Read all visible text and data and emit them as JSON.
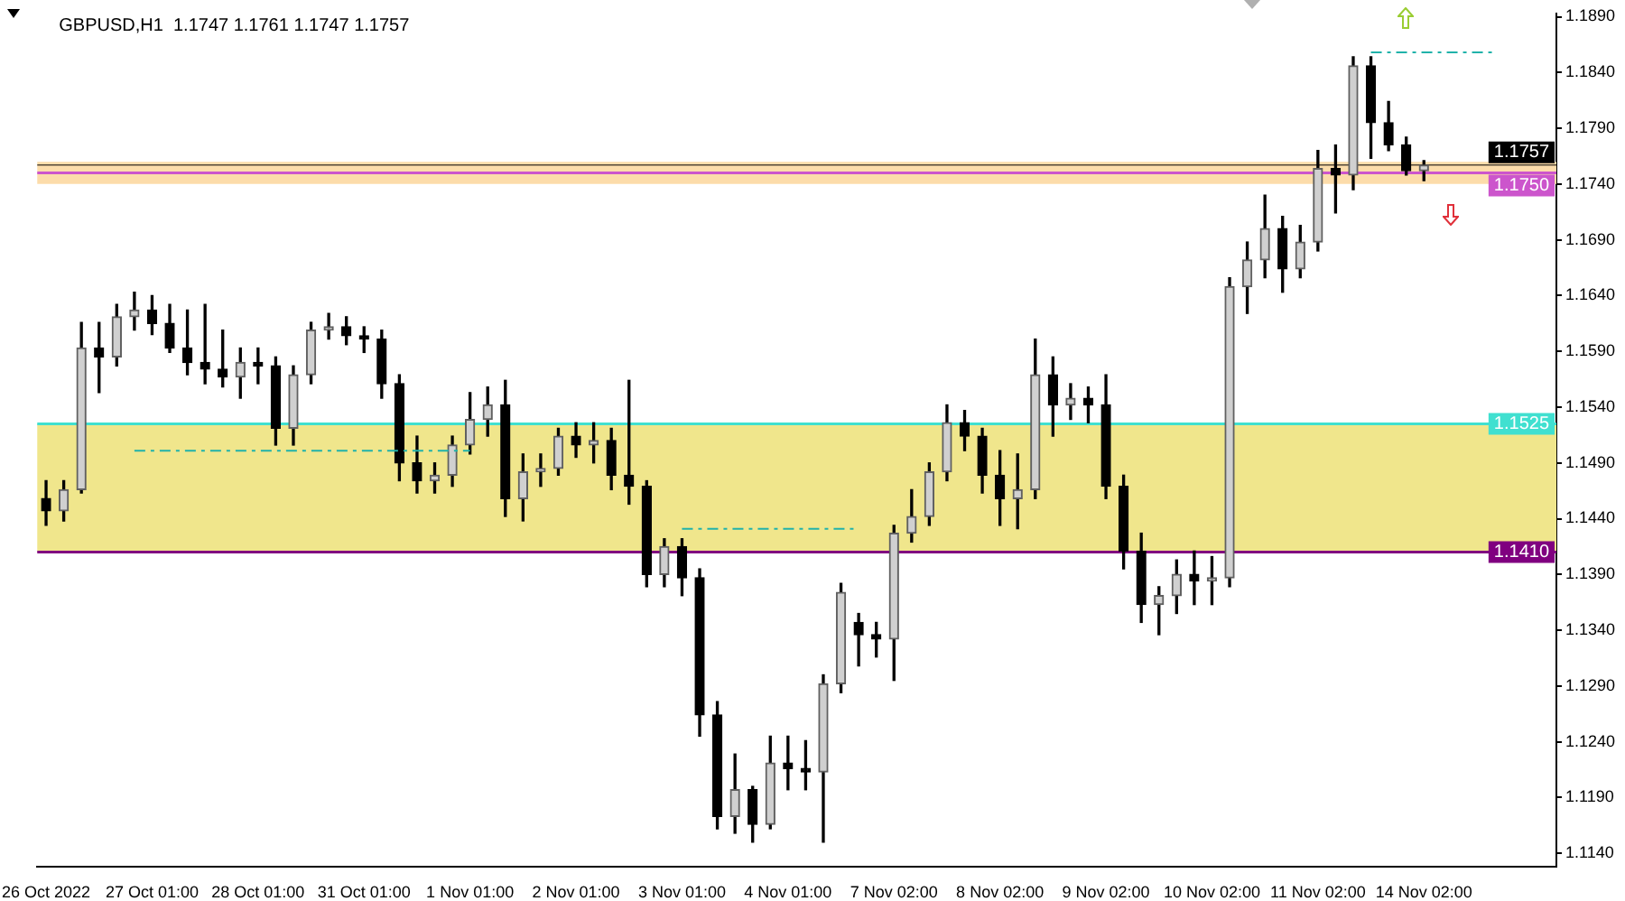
{
  "chart_data": {
    "type": "candlestick",
    "title": "GBPUSD,H1  1.1747 1.1761 1.1747 1.1757",
    "categories": [
      "26 Oct 2022",
      null,
      null,
      null,
      null,
      null,
      "27 Oct 01:00",
      null,
      null,
      null,
      null,
      null,
      "28 Oct 01:00",
      null,
      null,
      null,
      null,
      null,
      "31 Oct 01:00",
      null,
      null,
      null,
      null,
      null,
      "1 Nov 01:00",
      null,
      null,
      null,
      null,
      null,
      "2 Nov 01:00",
      null,
      null,
      null,
      null,
      null,
      "3 Nov 01:00",
      null,
      null,
      null,
      null,
      null,
      "4 Nov 01:00",
      null,
      null,
      null,
      null,
      null,
      "7 Nov 02:00",
      null,
      null,
      null,
      null,
      null,
      "8 Nov 02:00",
      null,
      null,
      null,
      null,
      null,
      "9 Nov 02:00",
      null,
      null,
      null,
      null,
      null,
      "10 Nov 02:00",
      null,
      null,
      null,
      null,
      null,
      "11 Nov 02:00",
      null,
      null,
      null,
      null,
      null,
      "14 Nov 02:00",
      null,
      null,
      null,
      null,
      null,
      null,
      null
    ],
    "ohlc": [
      [
        1.1458,
        1.1474,
        1.1434,
        1.1447
      ],
      [
        1.1447,
        1.1474,
        1.1438,
        1.1466
      ],
      [
        1.1466,
        1.1616,
        1.1463,
        1.1593
      ],
      [
        1.1593,
        1.1616,
        1.1553,
        1.1585
      ],
      [
        1.1585,
        1.1632,
        1.1577,
        1.1621
      ],
      [
        1.1621,
        1.1643,
        1.1609,
        1.1627
      ],
      [
        1.1627,
        1.164,
        1.1605,
        1.1615
      ],
      [
        1.1615,
        1.1632,
        1.1589,
        1.1593
      ],
      [
        1.1593,
        1.1627,
        1.1569,
        1.158
      ],
      [
        1.158,
        1.1632,
        1.1561,
        1.1574
      ],
      [
        1.1574,
        1.1609,
        1.1558,
        1.1567
      ],
      [
        1.1567,
        1.1593,
        1.1548,
        1.158
      ],
      [
        1.158,
        1.1593,
        1.1561,
        1.1577
      ],
      [
        1.1577,
        1.1585,
        1.1506,
        1.1521
      ],
      [
        1.1521,
        1.1577,
        1.1506,
        1.1569
      ],
      [
        1.1569,
        1.1616,
        1.1561,
        1.1609
      ],
      [
        1.1609,
        1.1624,
        1.1601,
        1.1612
      ],
      [
        1.1612,
        1.1621,
        1.1596,
        1.1604
      ],
      [
        1.1604,
        1.1612,
        1.1589,
        1.1601
      ],
      [
        1.1601,
        1.1609,
        1.1548,
        1.1561
      ],
      [
        1.1561,
        1.1569,
        1.1474,
        1.149
      ],
      [
        1.149,
        1.1514,
        1.1463,
        1.1474
      ],
      [
        1.1474,
        1.149,
        1.1463,
        1.1479
      ],
      [
        1.1479,
        1.1514,
        1.1469,
        1.1506
      ],
      [
        1.1506,
        1.1553,
        1.1498,
        1.1529
      ],
      [
        1.1529,
        1.1558,
        1.1514,
        1.1542
      ],
      [
        1.1542,
        1.1564,
        1.1442,
        1.1458
      ],
      [
        1.1458,
        1.1498,
        1.1438,
        1.1482
      ],
      [
        1.1482,
        1.1498,
        1.1469,
        1.1485
      ],
      [
        1.1485,
        1.1521,
        1.1479,
        1.1514
      ],
      [
        1.1514,
        1.1526,
        1.1495,
        1.1506
      ],
      [
        1.1506,
        1.1526,
        1.149,
        1.151
      ],
      [
        1.151,
        1.1521,
        1.1466,
        1.1479
      ],
      [
        1.1479,
        1.1564,
        1.1453,
        1.1469
      ],
      [
        1.1469,
        1.1474,
        1.1379,
        1.139
      ],
      [
        1.139,
        1.1422,
        1.1379,
        1.1415
      ],
      [
        1.1415,
        1.1422,
        1.1371,
        1.1387
      ],
      [
        1.1387,
        1.1395,
        1.1245,
        1.1264
      ],
      [
        1.1264,
        1.1276,
        1.1162,
        1.1173
      ],
      [
        1.1173,
        1.1229,
        1.1158,
        1.1197
      ],
      [
        1.1197,
        1.12,
        1.115,
        1.1166
      ],
      [
        1.1166,
        1.1245,
        1.1162,
        1.1221
      ],
      [
        1.1221,
        1.1245,
        1.1197,
        1.1216
      ],
      [
        1.1216,
        1.1241,
        1.1197,
        1.1213
      ],
      [
        1.1213,
        1.13,
        1.115,
        1.1292
      ],
      [
        1.1292,
        1.1382,
        1.1284,
        1.1374
      ],
      [
        1.1347,
        1.1355,
        1.1308,
        1.1336
      ],
      [
        1.1336,
        1.1347,
        1.1316,
        1.1332
      ],
      [
        1.1332,
        1.1434,
        1.1295,
        1.1427
      ],
      [
        1.1427,
        1.1466,
        1.1419,
        1.1442
      ],
      [
        1.1442,
        1.149,
        1.1434,
        1.1482
      ],
      [
        1.1482,
        1.1542,
        1.1474,
        1.1526
      ],
      [
        1.1526,
        1.1537,
        1.1501,
        1.1514
      ],
      [
        1.1514,
        1.1521,
        1.1463,
        1.1479
      ],
      [
        1.1479,
        1.1501,
        1.1434,
        1.1458
      ],
      [
        1.1458,
        1.1498,
        1.1431,
        1.1466
      ],
      [
        1.1466,
        1.1601,
        1.1458,
        1.1569
      ],
      [
        1.1569,
        1.1585,
        1.1514,
        1.1542
      ],
      [
        1.1542,
        1.1561,
        1.1529,
        1.1548
      ],
      [
        1.1548,
        1.1558,
        1.1526,
        1.1542
      ],
      [
        1.1542,
        1.1569,
        1.1458,
        1.1469
      ],
      [
        1.1469,
        1.1479,
        1.1395,
        1.1411
      ],
      [
        1.1411,
        1.1427,
        1.1347,
        1.1363
      ],
      [
        1.1363,
        1.1379,
        1.1336,
        1.1371
      ],
      [
        1.1371,
        1.1403,
        1.1355,
        1.139
      ],
      [
        1.139,
        1.1411,
        1.1363,
        1.1384
      ],
      [
        1.1384,
        1.1406,
        1.1363,
        1.1387
      ],
      [
        1.1387,
        1.1656,
        1.1379,
        1.1648
      ],
      [
        1.1648,
        1.1688,
        1.1624,
        1.1672
      ],
      [
        1.1672,
        1.173,
        1.1656,
        1.17
      ],
      [
        1.17,
        1.1711,
        1.1643,
        1.1664
      ],
      [
        1.1664,
        1.1703,
        1.1656,
        1.1688
      ],
      [
        1.1688,
        1.177,
        1.168,
        1.1754
      ],
      [
        1.1754,
        1.1775,
        1.1714,
        1.1748
      ],
      [
        1.1748,
        1.1854,
        1.1735,
        1.1846
      ],
      [
        1.1846,
        1.1854,
        1.1763,
        1.1795
      ],
      [
        1.1795,
        1.1814,
        1.177,
        1.1775
      ],
      [
        1.1775,
        1.1782,
        1.1748,
        1.1752
      ],
      [
        1.1752,
        1.1761,
        1.1743,
        1.1757
      ],
      null,
      null,
      null,
      null,
      null,
      null,
      null
    ],
    "series": [
      {
        "type": "line",
        "color": "#20b2aa",
        "line_style": "dashed",
        "values": [
          null,
          null,
          null,
          null,
          null,
          1.1501,
          1.1501,
          1.1501,
          1.1501,
          1.1501,
          1.1501,
          1.1501,
          1.1501,
          1.1501,
          1.1501,
          1.1501,
          1.1501,
          1.1501,
          1.1501,
          1.1501,
          1.1501,
          1.1501,
          1.1501,
          1.1501,
          1.1501,
          null,
          null,
          null,
          null,
          null,
          null,
          null,
          null,
          null,
          null,
          null,
          1.1431,
          1.1431,
          1.1431,
          1.1431,
          1.1431,
          1.1431,
          1.1431,
          1.1431,
          1.1431,
          1.1431,
          1.1431,
          null,
          null,
          null,
          null,
          null,
          null,
          null,
          null,
          null,
          null,
          null,
          null,
          null,
          null,
          null,
          null,
          null,
          null,
          null,
          null,
          null,
          null,
          null,
          null,
          null,
          null,
          null,
          null,
          1.1858,
          1.1858,
          1.1858,
          1.1858,
          1.1858,
          1.1858,
          1.1858,
          1.1858,
          null,
          null,
          null
        ]
      }
    ],
    "ylim": [
      1.1128,
      1.1893
    ],
    "yticks": [
      {
        "value": 1.114,
        "label": "1.1140"
      },
      {
        "value": 1.119,
        "label": "1.1190"
      },
      {
        "value": 1.124,
        "label": "1.1240"
      },
      {
        "value": 1.129,
        "label": "1.1290"
      },
      {
        "value": 1.134,
        "label": "1.1340"
      },
      {
        "value": 1.139,
        "label": "1.1390"
      },
      {
        "value": 1.144,
        "label": "1.1440"
      },
      {
        "value": 1.149,
        "label": "1.1490"
      },
      {
        "value": 1.154,
        "label": "1.1540"
      },
      {
        "value": 1.159,
        "label": "1.1590"
      },
      {
        "value": 1.164,
        "label": "1.1640"
      },
      {
        "value": 1.169,
        "label": "1.1690"
      },
      {
        "value": 1.174,
        "label": "1.1740"
      },
      {
        "value": 1.179,
        "label": "1.1790"
      },
      {
        "value": 1.184,
        "label": "1.1840"
      },
      {
        "value": 1.189,
        "label": "1.1890"
      }
    ],
    "bands": [
      {
        "axis": "y",
        "from": 1.141,
        "to": 1.1525,
        "color": "#f0e68c"
      },
      {
        "axis": "y",
        "from": 1.174,
        "to": 1.176,
        "color": "#fcdcaa"
      }
    ],
    "ref_lines": [
      {
        "axis": "y",
        "value": 1.1525,
        "label": "1.1525",
        "color": "#40e0d0"
      },
      {
        "axis": "y",
        "value": 1.141,
        "label": "1.1410",
        "color": "#800080"
      },
      {
        "axis": "y",
        "value": 1.175,
        "label": "1.1750",
        "color": "#cc55cc"
      },
      {
        "axis": "y",
        "value": 1.1757,
        "label": "1.1757",
        "color": "#000000"
      }
    ]
  }
}
